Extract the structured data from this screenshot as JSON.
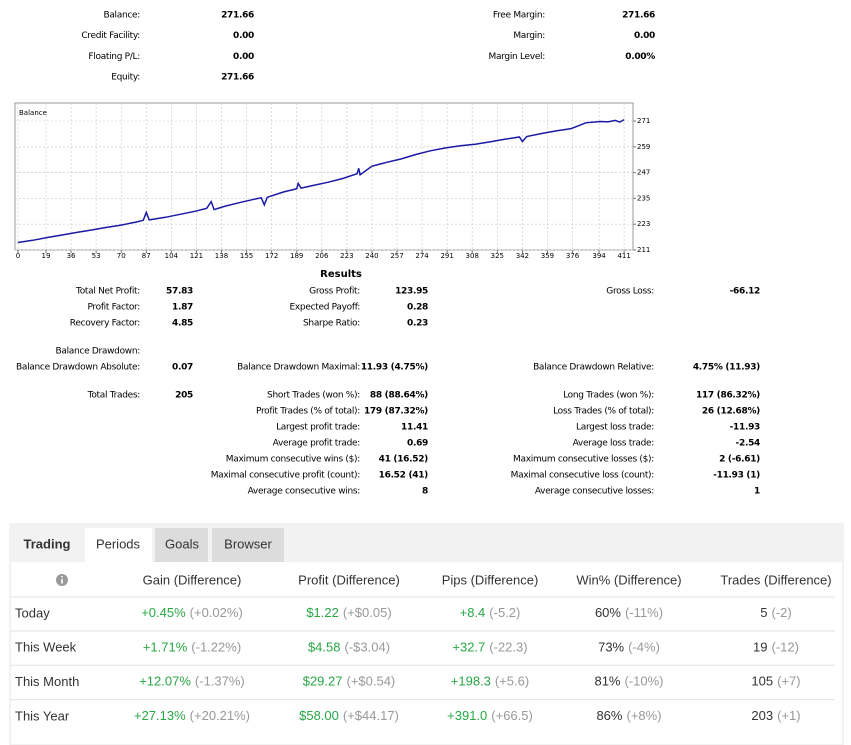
{
  "account": {
    "left": [
      {
        "label": "Balance:",
        "value": "271.66"
      },
      {
        "label": "Credit Facility:",
        "value": "0.00"
      },
      {
        "label": "Floating P/L:",
        "value": "0.00"
      },
      {
        "label": "Equity:",
        "value": "271.66"
      }
    ],
    "right": [
      {
        "label": "Free Margin:",
        "value": "271.66"
      },
      {
        "label": "Margin:",
        "value": "0.00"
      },
      {
        "label": "Margin Level:",
        "value": "0.00%"
      }
    ]
  },
  "chart_data": {
    "type": "line",
    "title": "Balance",
    "color": "#1a1aa6",
    "grid": true,
    "x": [
      0,
      10,
      20,
      30,
      40,
      50,
      60,
      70,
      80,
      85,
      87,
      89,
      100,
      110,
      120,
      128,
      131,
      133,
      140,
      150,
      160,
      165,
      167,
      169,
      180,
      189,
      190,
      192,
      200,
      210,
      220,
      230,
      231,
      232,
      240,
      250,
      260,
      270,
      280,
      290,
      300,
      310,
      320,
      330,
      340,
      342,
      345,
      355,
      365,
      375,
      380,
      385,
      395,
      400,
      405,
      408,
      411
    ],
    "values": [
      214.5,
      215.5,
      216.8,
      218,
      219.2,
      220.3,
      221.5,
      222.6,
      224,
      224.8,
      228.5,
      225,
      226.2,
      227.6,
      229,
      230.4,
      233.5,
      229.8,
      231.3,
      233,
      234.6,
      235.3,
      232,
      235.5,
      238,
      239.5,
      242,
      239.8,
      241,
      242.5,
      244.2,
      246.5,
      249,
      246,
      250,
      251.8,
      253.4,
      255.5,
      257.2,
      258.5,
      259.5,
      260.2,
      261.3,
      262.5,
      263.6,
      261.5,
      263.8,
      265.2,
      266.4,
      267.5,
      268.8,
      270.2,
      270.8,
      270.6,
      271.3,
      270.5,
      271.66
    ],
    "xlim": [
      -2,
      417
    ],
    "ylim": [
      211,
      279.4
    ],
    "xticks": [
      0,
      19,
      36,
      53,
      70,
      87,
      104,
      121,
      138,
      155,
      172,
      189,
      206,
      223,
      240,
      257,
      274,
      291,
      308,
      325,
      342,
      359,
      376,
      394,
      411
    ],
    "yticks": [
      211,
      223,
      235,
      247,
      259,
      271
    ]
  },
  "results": {
    "title": "Results",
    "rows": [
      [
        {
          "label": "Total Net Profit:",
          "value": "57.83"
        },
        {
          "label": "Gross Profit:",
          "value": "123.95"
        },
        {
          "label": "Gross Loss:",
          "value": "-66.12"
        }
      ],
      [
        {
          "label": "Profit Factor:",
          "value": "1.87"
        },
        {
          "label": "Expected Payoff:",
          "value": "0.28"
        },
        null
      ],
      [
        {
          "label": "Recovery Factor:",
          "value": "4.85"
        },
        {
          "label": "Sharpe Ratio:",
          "value": "0.23"
        },
        null
      ],
      [
        {
          "label": "Balance Drawdown:"
        },
        null,
        null
      ],
      [
        {
          "label": "Balance Drawdown Absolute:",
          "value": "0.07"
        },
        {
          "label": "Balance Drawdown Maximal:",
          "value": "11.93 (4.75%)"
        },
        {
          "label": "Balance Drawdown Relative:",
          "value": "4.75% (11.93)"
        }
      ],
      [
        {
          "label": "Total Trades:",
          "value": "205"
        },
        {
          "label": "Short Trades (won %):",
          "value": "88 (88.64%)"
        },
        {
          "label": "Long Trades (won %):",
          "value": "117 (86.32%)"
        }
      ],
      [
        null,
        {
          "label": "Profit Trades (% of total):",
          "value": "179 (87.32%)"
        },
        {
          "label": "Loss Trades (% of total):",
          "value": "26 (12.68%)"
        }
      ],
      [
        null,
        {
          "label": "Largest profit trade:",
          "value": "11.41"
        },
        {
          "label": "Largest loss trade:",
          "value": "-11.93"
        }
      ],
      [
        null,
        {
          "label": "Average profit trade:",
          "value": "0.69"
        },
        {
          "label": "Average loss trade:",
          "value": "-2.54"
        }
      ],
      [
        null,
        {
          "label": "Maximum consecutive wins ($):",
          "value": "41 (16.52)"
        },
        {
          "label": "Maximum consecutive losses ($):",
          "value": "2 (-6.61)"
        }
      ],
      [
        null,
        {
          "label": "Maximal consecutive profit (count):",
          "value": "16.52 (41)"
        },
        {
          "label": "Maximal consecutive loss (count):",
          "value": "-11.93 (1)"
        }
      ],
      [
        null,
        {
          "label": "Average consecutive wins:",
          "value": "8"
        },
        {
          "label": "Average consecutive losses:",
          "value": "1"
        }
      ]
    ]
  },
  "tabs": [
    "Trading",
    "Periods",
    "Goals",
    "Browser"
  ],
  "table": {
    "headers": [
      "Gain (Difference)",
      "Profit (Difference)",
      "Pips (Difference)",
      "Win% (Difference)",
      "Trades (Difference)"
    ],
    "rows": [
      {
        "label": "Today",
        "cells": [
          [
            "+0.45%",
            "(+0.02%)"
          ],
          [
            "$1.22",
            "(+$0.05)"
          ],
          [
            "+8.4",
            "(-5.2)"
          ],
          [
            "60%",
            "(-11%)"
          ],
          [
            "5",
            "(-2)"
          ]
        ]
      },
      {
        "label": "This Week",
        "cells": [
          [
            "+1.71%",
            "(-1.22%)"
          ],
          [
            "$4.58",
            "(-$3.04)"
          ],
          [
            "+32.7",
            "(-22.3)"
          ],
          [
            "73%",
            "(-4%)"
          ],
          [
            "19",
            "(-12)"
          ]
        ]
      },
      {
        "label": "This Month",
        "cells": [
          [
            "+12.07%",
            "(-1.37%)"
          ],
          [
            "$29.27",
            "(+$0.54)"
          ],
          [
            "+198.3",
            "(+5.6)"
          ],
          [
            "81%",
            "(-10%)"
          ],
          [
            "105",
            "(+7)"
          ]
        ]
      },
      {
        "label": "This Year",
        "cells": [
          [
            "+27.13%",
            "(+20.21%)"
          ],
          [
            "$58.00",
            "(+$44.17)"
          ],
          [
            "+391.0",
            "(+66.5)"
          ],
          [
            "86%",
            "(+8%)"
          ],
          [
            "203",
            "(+1)"
          ]
        ]
      }
    ]
  }
}
